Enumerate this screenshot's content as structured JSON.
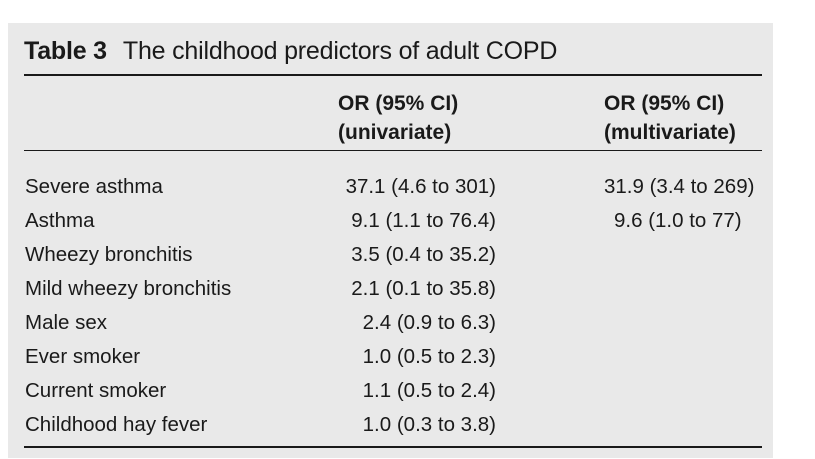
{
  "table": {
    "label": "Table 3",
    "title": "The childhood predictors of adult COPD",
    "headers": {
      "col1": "",
      "col2_line1": "OR (95% CI)",
      "col2_line2": "(univariate)",
      "col3_line1": "OR (95% CI)",
      "col3_line2": "(multivariate)"
    },
    "rows": [
      {
        "predictor": "Severe asthma",
        "univariate": "37.1 (4.6 to 301)",
        "multivariate": "31.9 (3.4 to 269)"
      },
      {
        "predictor": "Asthma",
        "univariate": "9.1 (1.1 to 76.4)",
        "multivariate": "9.6 (1.0 to 77)"
      },
      {
        "predictor": "Wheezy bronchitis",
        "univariate": "3.5 (0.4 to 35.2)",
        "multivariate": ""
      },
      {
        "predictor": "Mild wheezy bronchitis",
        "univariate": "2.1 (0.1 to 35.8)",
        "multivariate": ""
      },
      {
        "predictor": "Male sex",
        "univariate": "2.4 (0.9 to 6.3)",
        "multivariate": ""
      },
      {
        "predictor": "Ever smoker",
        "univariate": "1.0 (0.5 to 2.3)",
        "multivariate": ""
      },
      {
        "predictor": "Current smoker",
        "univariate": "1.1 (0.5 to 2.4)",
        "multivariate": ""
      },
      {
        "predictor": "Childhood hay fever",
        "univariate": "1.0 (0.3 to 3.8)",
        "multivariate": ""
      }
    ]
  }
}
